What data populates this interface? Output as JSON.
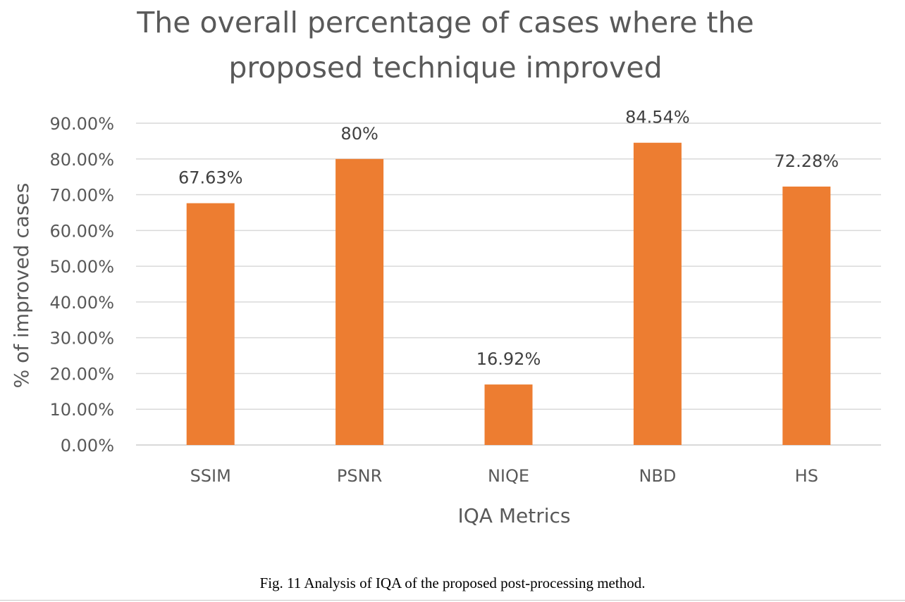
{
  "chart_data": {
    "type": "bar",
    "title_lines": [
      "The overall percentage of cases where the",
      "proposed technique improved"
    ],
    "categories": [
      "SSIM",
      "PSNR",
      "NIQE",
      "NBD",
      "HS"
    ],
    "values": [
      67.63,
      80,
      16.92,
      84.54,
      72.28
    ],
    "data_labels": [
      "67.63%",
      "80%",
      "16.92%",
      "84.54%",
      "72.28%"
    ],
    "xlabel": "IQA Metrics",
    "ylabel": "% of improved cases",
    "ylim": [
      0,
      90
    ],
    "yticks": [
      0,
      10,
      20,
      30,
      40,
      50,
      60,
      70,
      80,
      90
    ],
    "ytick_labels": [
      "0.00%",
      "10.00%",
      "20.00%",
      "30.00%",
      "40.00%",
      "50.00%",
      "60.00%",
      "70.00%",
      "80.00%",
      "90.00%"
    ],
    "grid": true,
    "legend": "none",
    "bar_color": "#ED7D31",
    "grid_color": "#D9D9D9",
    "text_color": "#595959"
  },
  "caption": "Fig. 11 Analysis of IQA of the proposed post-processing method."
}
